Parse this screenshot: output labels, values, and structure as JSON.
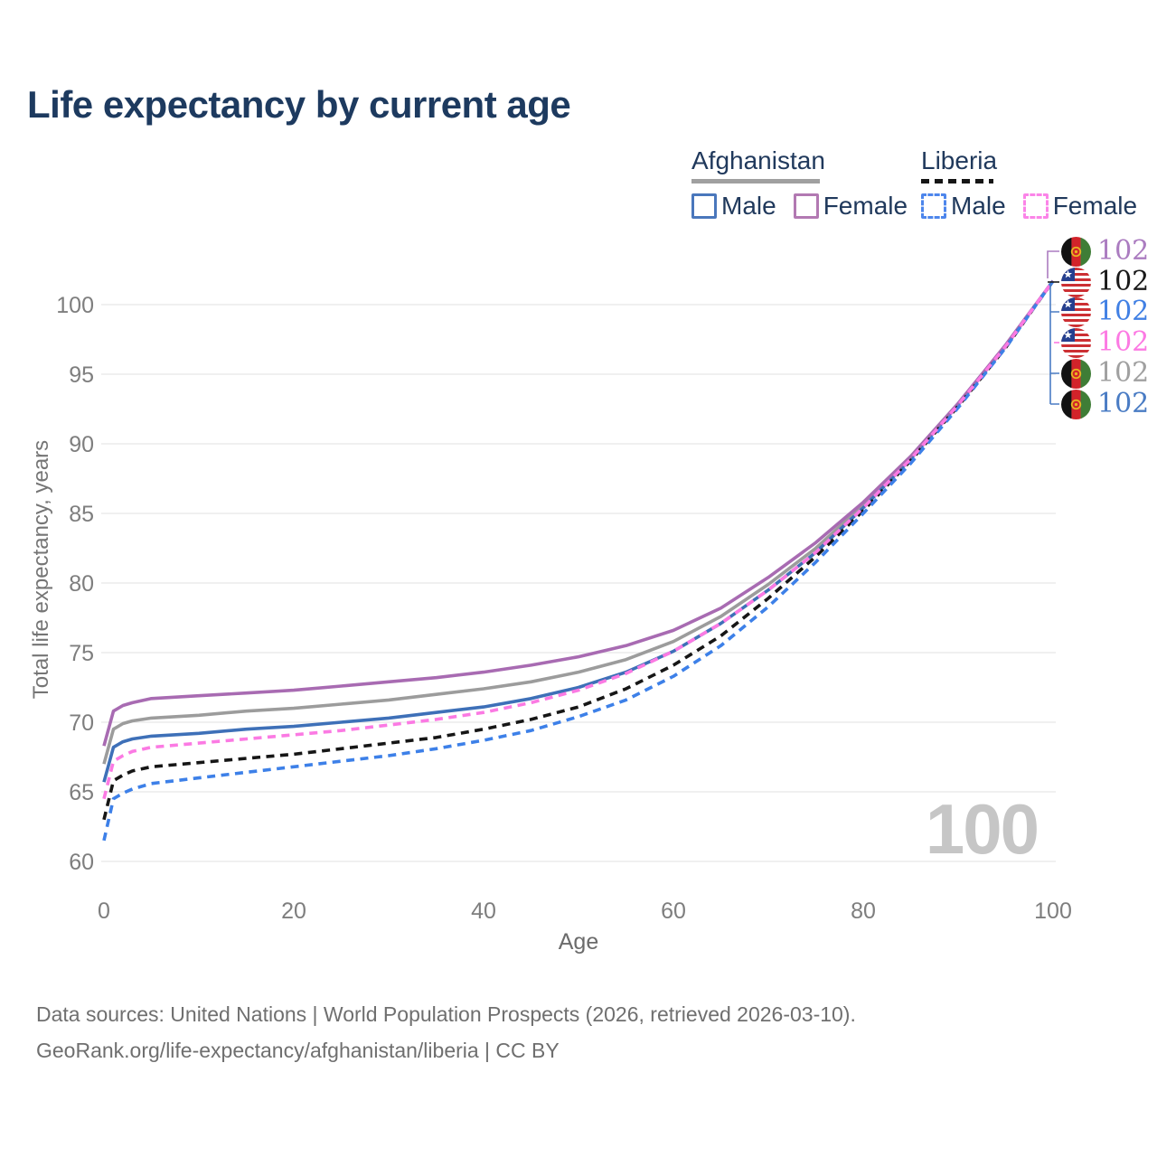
{
  "title": "Life expectancy by current age",
  "legend": {
    "groups": [
      {
        "label": "Afghanistan",
        "line_style": "solid",
        "underline_color": "#a0a0a0",
        "items": [
          {
            "label": "Male",
            "color": "#3e70b8"
          },
          {
            "label": "Female",
            "color": "#a86bb2"
          }
        ]
      },
      {
        "label": "Liberia",
        "line_style": "dashed",
        "underline_color": "#161616",
        "items": [
          {
            "label": "Male",
            "color": "#3d80e8"
          },
          {
            "label": "Female",
            "color": "#fb7ae3"
          }
        ]
      }
    ]
  },
  "watermark": "100",
  "footer": {
    "line1": "Data sources: United Nations | World Population Prospects (2026, retrieved 2026-03-10).",
    "line2": "GeoRank.org/life-expectancy/afghanistan/liberia | CC BY"
  },
  "chart_data": {
    "type": "line",
    "title": "Life expectancy by current age",
    "xlabel": "Age",
    "ylabel": "Total life expectancy, years",
    "xlim": [
      0,
      100
    ],
    "ylim": [
      58.5,
      103.5
    ],
    "x_ticks": [
      0,
      20,
      40,
      60,
      80,
      100
    ],
    "y_ticks": [
      60,
      65,
      70,
      75,
      80,
      85,
      90,
      95,
      100
    ],
    "grid": "horizontal",
    "legend_position": "top-right",
    "x": [
      0,
      1,
      2,
      3,
      5,
      10,
      15,
      20,
      25,
      30,
      35,
      40,
      45,
      50,
      55,
      60,
      65,
      70,
      75,
      80,
      85,
      90,
      95,
      100
    ],
    "series": [
      {
        "name": "Afghanistan (both sexes)",
        "color": "#9c9c9c",
        "dashed": false,
        "values": [
          67.0,
          69.5,
          69.9,
          70.1,
          70.3,
          70.5,
          70.8,
          71.0,
          71.3,
          71.6,
          72.0,
          72.4,
          72.9,
          73.6,
          74.5,
          75.8,
          77.6,
          79.9,
          82.5,
          85.6,
          89.0,
          92.8,
          97.0,
          101.7
        ]
      },
      {
        "name": "Afghanistan Male",
        "color": "#3e70b8",
        "dashed": false,
        "values": [
          65.7,
          68.2,
          68.6,
          68.8,
          69.0,
          69.2,
          69.5,
          69.7,
          70.0,
          70.3,
          70.7,
          71.1,
          71.7,
          72.5,
          73.6,
          75.1,
          77.1,
          79.5,
          82.2,
          85.4,
          88.9,
          92.8,
          97.0,
          101.7
        ]
      },
      {
        "name": "Afghanistan Female",
        "color": "#a86bb2",
        "dashed": false,
        "values": [
          68.3,
          70.8,
          71.2,
          71.4,
          71.7,
          71.9,
          72.1,
          72.3,
          72.6,
          72.9,
          73.2,
          73.6,
          74.1,
          74.7,
          75.5,
          76.6,
          78.2,
          80.4,
          82.9,
          85.8,
          89.1,
          92.9,
          97.1,
          101.7
        ]
      },
      {
        "name": "Liberia (both sexes)",
        "color": "#161616",
        "dashed": true,
        "values": [
          63.0,
          65.8,
          66.2,
          66.5,
          66.8,
          67.1,
          67.4,
          67.7,
          68.1,
          68.5,
          68.9,
          69.5,
          70.2,
          71.1,
          72.4,
          74.1,
          76.2,
          78.9,
          81.9,
          85.2,
          88.8,
          92.7,
          96.9,
          101.7
        ]
      },
      {
        "name": "Liberia Male",
        "color": "#3d80e8",
        "dashed": true,
        "values": [
          61.5,
          64.5,
          64.9,
          65.2,
          65.6,
          66.0,
          66.4,
          66.8,
          67.2,
          67.6,
          68.1,
          68.7,
          69.4,
          70.4,
          71.6,
          73.3,
          75.5,
          78.3,
          81.5,
          85.0,
          88.6,
          92.6,
          96.9,
          101.7
        ]
      },
      {
        "name": "Liberia Female",
        "color": "#fb7ae3",
        "dashed": true,
        "values": [
          64.5,
          67.2,
          67.6,
          67.9,
          68.2,
          68.5,
          68.8,
          69.1,
          69.4,
          69.8,
          70.2,
          70.7,
          71.4,
          72.3,
          73.5,
          75.1,
          77.1,
          79.5,
          82.2,
          85.4,
          88.9,
          92.8,
          97.0,
          101.7
        ]
      }
    ],
    "end_labels": [
      {
        "series": "Afghanistan Female",
        "value": "102",
        "color": "#ab7cc0",
        "flag": "afghanistan-flag-icon"
      },
      {
        "series": "Liberia (both sexes)",
        "value": "102",
        "color": "#1a1a1a",
        "flag": "liberia-flag-icon"
      },
      {
        "series": "Liberia Male",
        "value": "102",
        "color": "#4180e4",
        "flag": "liberia-flag-icon"
      },
      {
        "series": "Liberia Female",
        "value": "102",
        "color": "#fc7ae3",
        "flag": "liberia-flag-icon"
      },
      {
        "series": "Afghanistan (both sexes)",
        "value": "102",
        "color": "#a0a0a0",
        "flag": "afghanistan-flag-icon"
      },
      {
        "series": "Afghanistan Male",
        "value": "102",
        "color": "#4a7cc4",
        "flag": "afghanistan-flag-icon"
      }
    ],
    "tick_color": "#7e7e7e",
    "grid_color": "#ececec"
  }
}
